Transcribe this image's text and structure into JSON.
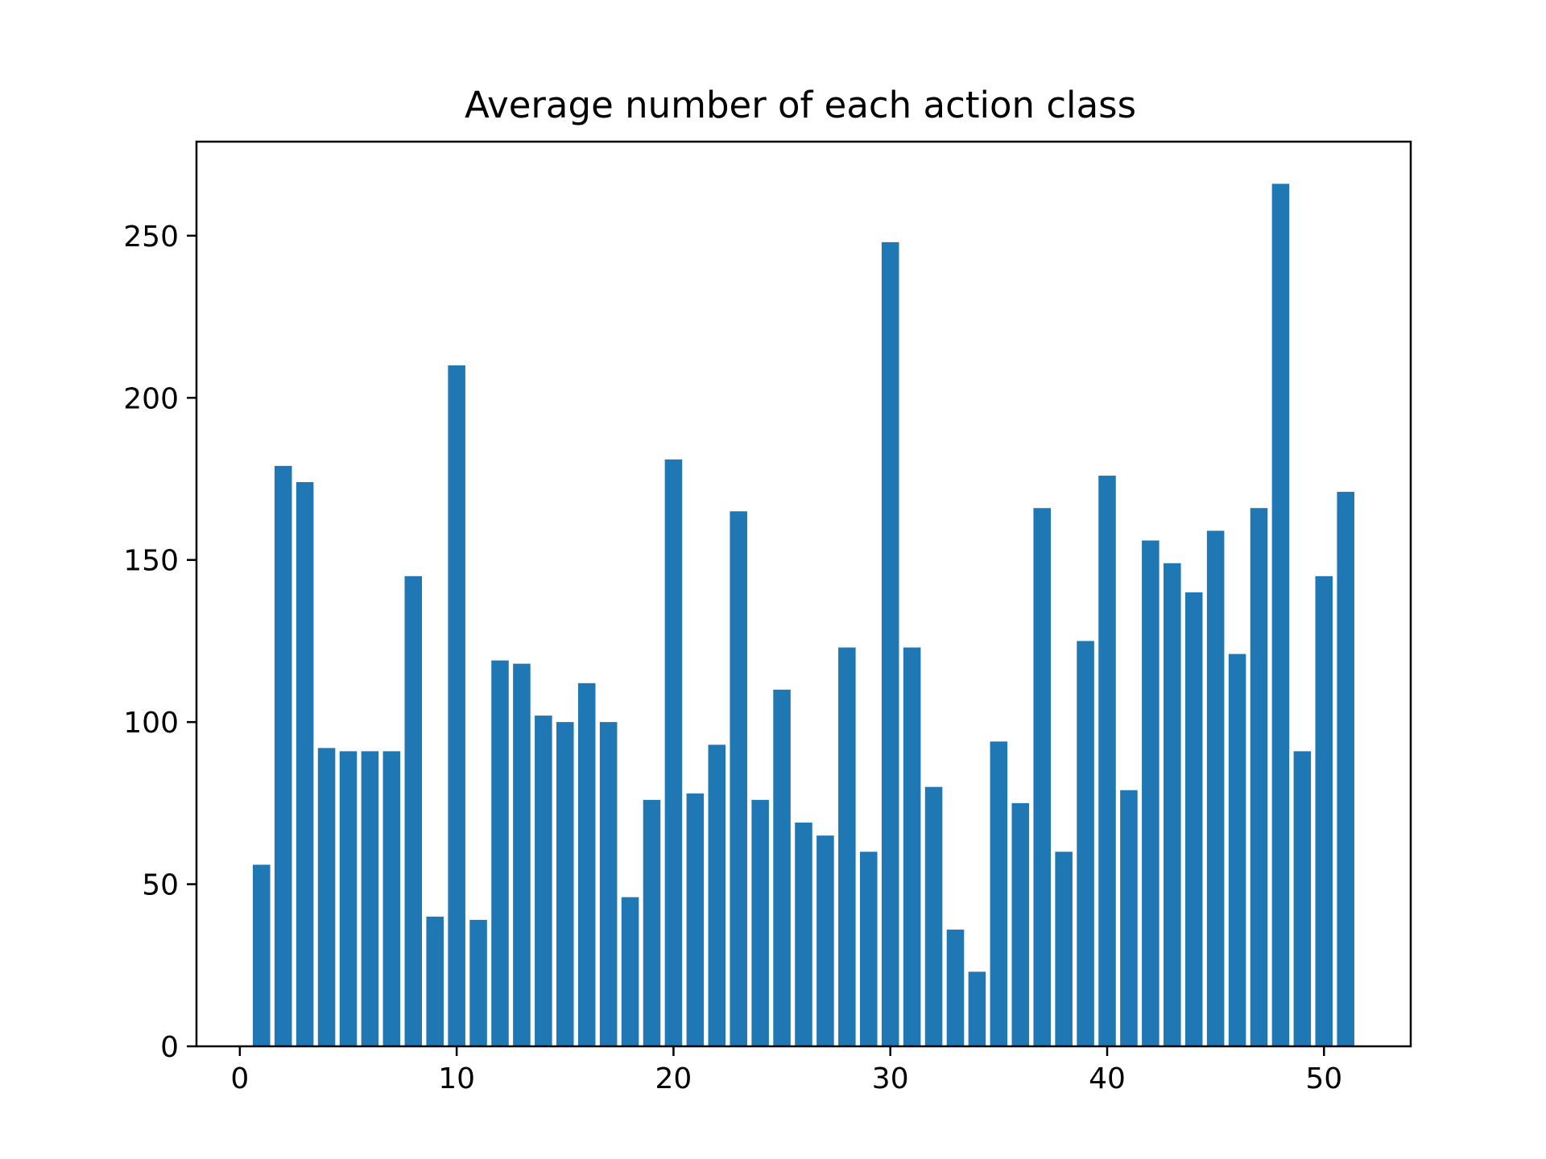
{
  "chart_data": {
    "type": "bar",
    "title": "Average number of each action class",
    "xlabel": "",
    "ylabel": "",
    "x": [
      1,
      2,
      3,
      4,
      5,
      6,
      7,
      8,
      9,
      10,
      11,
      12,
      13,
      14,
      15,
      16,
      17,
      18,
      19,
      20,
      21,
      22,
      23,
      24,
      25,
      26,
      27,
      28,
      29,
      30,
      31,
      32,
      33,
      34,
      35,
      36,
      37,
      38,
      39,
      40,
      41,
      42,
      43,
      44,
      45,
      46,
      47,
      48,
      49,
      50,
      51
    ],
    "values": [
      56,
      179,
      174,
      92,
      91,
      91,
      91,
      145,
      40,
      210,
      39,
      119,
      118,
      102,
      100,
      112,
      100,
      46,
      76,
      181,
      78,
      93,
      165,
      76,
      110,
      69,
      65,
      123,
      60,
      248,
      123,
      80,
      36,
      23,
      94,
      75,
      166,
      60,
      125,
      176,
      79,
      156,
      149,
      140,
      159,
      121,
      166,
      266,
      91,
      145,
      171
    ],
    "xlim": [
      -2,
      54
    ],
    "ylim": [
      0,
      279
    ],
    "xticks": [
      0,
      10,
      20,
      30,
      40,
      50
    ],
    "yticks": [
      0,
      50,
      100,
      150,
      200,
      250
    ],
    "bar_color": "#1f77b4",
    "grid": false,
    "legend": false
  }
}
